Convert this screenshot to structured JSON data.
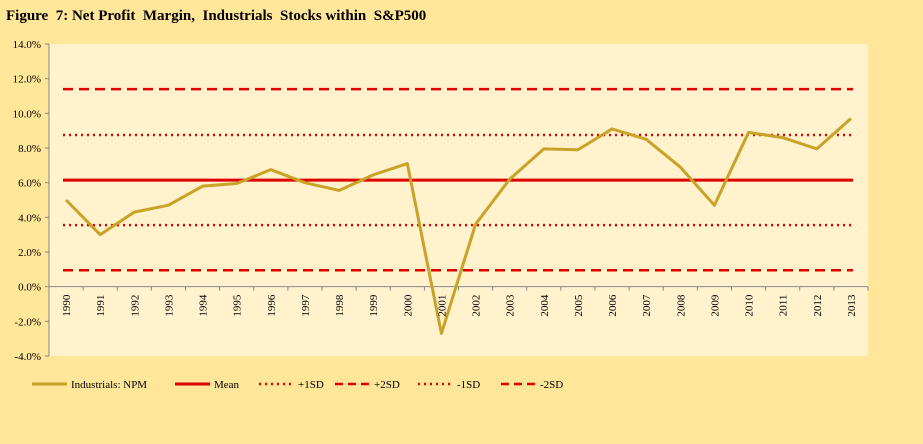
{
  "title": "Figure  7: Net Profit  Margin,  Industrials  Stocks within  S&P500",
  "colors": {
    "background": "#FFE699",
    "plot_area": "#FFF2CC",
    "npm_line": "#C9A227",
    "band_lines": "#E00000"
  },
  "chart_data": {
    "type": "line",
    "title": "Figure  7: Net Profit  Margin,  Industrials  Stocks within  S&P500",
    "xlabel": "",
    "ylabel": "",
    "x": [
      "1990",
      "1991",
      "1992",
      "1993",
      "1994",
      "1995",
      "1996",
      "1997",
      "1998",
      "1999",
      "2000",
      "2001",
      "2002",
      "2003",
      "2004",
      "2005",
      "2006",
      "2007",
      "2008",
      "2009",
      "2010",
      "2011",
      "2012",
      "2013"
    ],
    "ylim": [
      -4,
      14
    ],
    "y_ticks": [
      -4,
      -2,
      0,
      2,
      4,
      6,
      8,
      10,
      12,
      14
    ],
    "y_tick_labels": [
      "-4.0%",
      "-2.0%",
      "0.0%",
      "2.0%",
      "4.0%",
      "6.0%",
      "8.0%",
      "10.0%",
      "12.0%",
      "14.0%"
    ],
    "grid": false,
    "legend_position": "bottom-left",
    "series": [
      {
        "name": "Industrials: NPM",
        "style": "solid",
        "values": [
          5.0,
          3.0,
          4.3,
          4.7,
          5.8,
          5.95,
          6.75,
          6.0,
          5.55,
          6.45,
          7.1,
          -2.7,
          3.6,
          6.2,
          7.95,
          7.9,
          9.1,
          8.5,
          6.9,
          4.7,
          8.9,
          8.6,
          7.95,
          9.7
        ]
      },
      {
        "name": "Mean",
        "style": "solid",
        "value": 6.15
      },
      {
        "name": "+1SD",
        "style": "dotted",
        "value": 8.75
      },
      {
        "name": "+2SD",
        "style": "dashed",
        "value": 11.4
      },
      {
        "name": "-1SD",
        "style": "dotted",
        "value": 3.55
      },
      {
        "name": "-2SD",
        "style": "dashed",
        "value": 0.95
      }
    ]
  }
}
